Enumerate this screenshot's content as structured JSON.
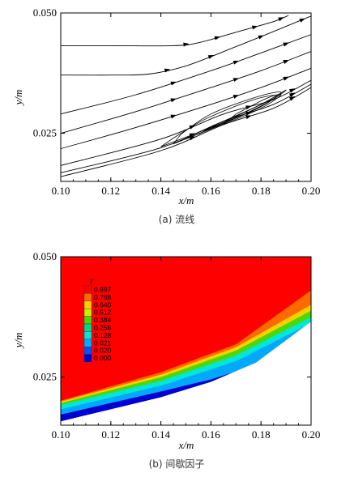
{
  "panels": [
    {
      "caption": "(a) 流线",
      "chart_data": {
        "type": "line",
        "subtype": "streamlines",
        "xlabel": "x/m",
        "ylabel": "y/m",
        "xlim": [
          0.1,
          0.2
        ],
        "ylim": [
          0.015,
          0.05
        ],
        "xticks": [
          "0.10",
          "0.12",
          "0.14",
          "0.16",
          "0.18",
          "0.20"
        ],
        "yticks": [
          "0.025",
          "0.050"
        ],
        "grid": false,
        "series": [
          {
            "values": [
              [
                0.1,
                0.0432
              ],
              [
                0.12,
                0.0432
              ],
              [
                0.145,
                0.0432
              ],
              [
                0.155,
                0.0438
              ],
              [
                0.17,
                0.046
              ],
              [
                0.185,
                0.0482
              ],
              [
                0.191,
                0.0495
              ]
            ]
          },
          {
            "values": [
              [
                0.1,
                0.0371
              ],
              [
                0.12,
                0.0371
              ],
              [
                0.135,
                0.0373
              ],
              [
                0.15,
                0.039
              ],
              [
                0.17,
                0.043
              ],
              [
                0.19,
                0.0472
              ],
              [
                0.203,
                0.05
              ]
            ]
          },
          {
            "values": [
              [
                0.1,
                0.029
              ],
              [
                0.13,
                0.033
              ],
              [
                0.16,
                0.038
              ],
              [
                0.18,
                0.0417
              ],
              [
                0.2,
                0.0455
              ]
            ]
          },
          {
            "values": [
              [
                0.1,
                0.025
              ],
              [
                0.13,
                0.0295
              ],
              [
                0.16,
                0.0345
              ],
              [
                0.18,
                0.038
              ],
              [
                0.2,
                0.042
              ]
            ]
          },
          {
            "values": [
              [
                0.1,
                0.0218
              ],
              [
                0.13,
                0.0262
              ],
              [
                0.16,
                0.031
              ],
              [
                0.18,
                0.0345
              ],
              [
                0.2,
                0.0385
              ]
            ]
          },
          {
            "values": [
              [
                0.1,
                0.0183
              ],
              [
                0.14,
                0.0238
              ],
              [
                0.165,
                0.029
              ],
              [
                0.185,
                0.032
              ],
              [
                0.2,
                0.036
              ]
            ]
          },
          {
            "values": [
              [
                0.1,
                0.0168
              ],
              [
                0.14,
                0.022
              ],
              [
                0.165,
                0.0275
              ],
              [
                0.185,
                0.031
              ],
              [
                0.2,
                0.0352
              ]
            ]
          },
          {
            "values": [
              [
                0.1,
                0.016
              ],
              [
                0.14,
                0.0214
              ],
              [
                0.165,
                0.0268
              ],
              [
                0.185,
                0.0302
              ],
              [
                0.2,
                0.0345
              ]
            ]
          }
        ]
      }
    },
    {
      "caption": "(b) 间歇因子",
      "chart_data": {
        "type": "heatmap",
        "xlabel": "x/m",
        "ylabel": "y/m",
        "xlim": [
          0.1,
          0.2
        ],
        "ylim": [
          0.015,
          0.05
        ],
        "xticks": [
          "0.10",
          "0.12",
          "0.14",
          "0.16",
          "0.18",
          "0.20"
        ],
        "yticks": [
          "0.025",
          "0.050"
        ],
        "legend_title": "γ",
        "legend_position": "top-left",
        "legend_levels": [
          "0.897",
          "0.768",
          "0.640",
          "0.512",
          "0.384",
          "0.256",
          "0.128",
          "0.021",
          "0.020",
          "0.000"
        ],
        "legend_colors": [
          "#ff0000",
          "#ff6a00",
          "#ffd000",
          "#c8f000",
          "#4cd800",
          "#00d88a",
          "#00e6d8",
          "#00a8ff",
          "#0050ff",
          "#0000d0"
        ],
        "bands": [
          {
            "level": "0.897",
            "upper": [
              [
                0.1,
                0.05
              ],
              [
                0.2,
                0.05
              ]
            ]
          },
          {
            "level": "0.768",
            "upper": [
              [
                0.1,
                0.0201
              ],
              [
                0.14,
                0.026
              ],
              [
                0.17,
                0.0318
              ],
              [
                0.2,
                0.043
              ]
            ]
          },
          {
            "level": "0.640",
            "upper": [
              [
                0.1,
                0.0199
              ],
              [
                0.14,
                0.0255
              ],
              [
                0.17,
                0.0312
              ],
              [
                0.2,
                0.04
              ]
            ]
          },
          {
            "level": "0.384",
            "upper": [
              [
                0.1,
                0.0196
              ],
              [
                0.14,
                0.025
              ],
              [
                0.17,
                0.0305
              ],
              [
                0.2,
                0.0388
              ]
            ]
          },
          {
            "level": "0.128",
            "upper": [
              [
                0.1,
                0.0192
              ],
              [
                0.14,
                0.0242
              ],
              [
                0.17,
                0.0295
              ],
              [
                0.2,
                0.0375
              ]
            ]
          },
          {
            "level": "0.021",
            "upper": [
              [
                0.1,
                0.0183
              ],
              [
                0.14,
                0.0232
              ],
              [
                0.17,
                0.0283
              ],
              [
                0.2,
                0.0362
              ]
            ]
          },
          {
            "level": "0.000",
            "upper": [
              [
                0.1,
                0.0172
              ],
              [
                0.14,
                0.022
              ],
              [
                0.16,
                0.0245
              ],
              [
                0.175,
                0.027
              ],
              [
                0.2,
                0.0345
              ]
            ]
          }
        ],
        "wall": [
          [
            0.1,
            0.0158
          ],
          [
            0.14,
            0.0208
          ],
          [
            0.16,
            0.024
          ],
          [
            0.178,
            0.028
          ],
          [
            0.2,
            0.0365
          ]
        ]
      }
    }
  ]
}
